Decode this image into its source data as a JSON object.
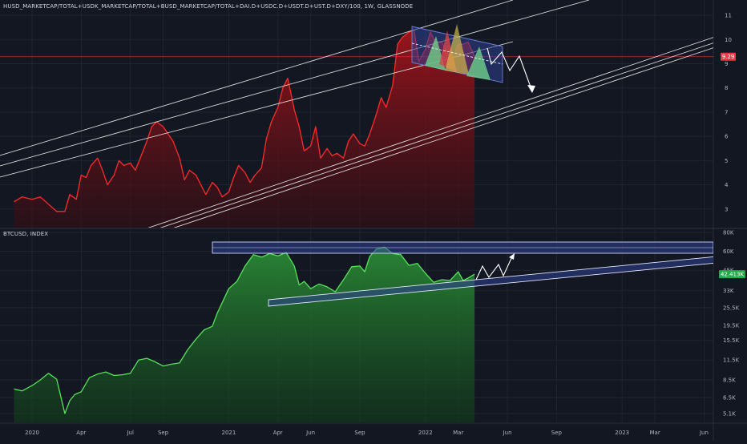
{
  "colors": {
    "background": "#131722",
    "grid": "#1f2430",
    "top_line": "#ff2a2a",
    "top_fill": "#8b0f16",
    "bottom_line": "#56e35a",
    "bottom_fill": "#1f6b28",
    "channel": "#d9d9d9",
    "price_line": "#ff2a2a",
    "badge_red": "#f23645",
    "badge_green": "#22ab4a",
    "pattern_blue": "#2f3f93",
    "pattern_green": "#6fd08a",
    "pattern_red": "#d84545",
    "pattern_yellow": "#d9c34a",
    "text": "#b2b5be"
  },
  "top_pane": {
    "title": "HUSD_MARKETCAP/TOTAL+USDK_MARKETCAP/TOTAL+BUSD_MARKETCAP/TOTAL+DAI.D+USDC.D+USDT.D+UST.D+DXY/100, 1W, GLASSNODE",
    "current_value_label": "9.29"
  },
  "bottom_pane": {
    "title": "BTCUSD, INDEX",
    "current_value_label": "42.413K"
  },
  "x_axis": {
    "labels": [
      {
        "text": "2020",
        "t": 0
      },
      {
        "text": "Apr",
        "t": 3
      },
      {
        "text": "Jul",
        "t": 6
      },
      {
        "text": "Sep",
        "t": 8
      },
      {
        "text": "2021",
        "t": 12
      },
      {
        "text": "Apr",
        "t": 15
      },
      {
        "text": "Jun",
        "t": 17
      },
      {
        "text": "Sep",
        "t": 20
      },
      {
        "text": "2022",
        "t": 24
      },
      {
        "text": "Mar",
        "t": 26
      },
      {
        "text": "Jun",
        "t": 29
      },
      {
        "text": "Sep",
        "t": 32
      },
      {
        "text": "2023",
        "t": 36
      },
      {
        "text": "Mar",
        "t": 38
      },
      {
        "text": "Jun",
        "t": 41
      }
    ]
  },
  "chart_data": [
    {
      "type": "area",
      "pane": "top",
      "title": "HUSD_MARKETCAP/TOTAL+USDK_MARKETCAP/TOTAL+BUSD_MARKETCAP/TOTAL+DAI.D+USDC.D+USDT.D+UST.D+DXY/100, 1W, GLASSNODE",
      "xlabel": "",
      "ylabel": "",
      "x_unit": "months since Jan 2020",
      "ylim": [
        2.3,
        11.3
      ],
      "y_ticks": [
        3,
        4,
        5,
        6,
        7,
        8,
        9,
        10,
        11
      ],
      "current_value": 9.29,
      "series": [
        {
          "x": [
            -1.1,
            -0.6,
            0,
            0.5,
            1,
            1.5,
            2,
            2.3,
            2.7,
            3,
            3.3,
            3.6,
            4,
            4.3,
            4.6,
            5,
            5.3,
            5.6,
            6,
            6.3,
            6.6,
            7,
            7.3,
            7.6,
            8,
            8.3,
            8.6,
            9,
            9.3,
            9.6,
            10,
            10.3,
            10.6,
            11,
            11.3,
            11.6,
            12,
            12.3,
            12.6,
            13,
            13.3,
            13.6,
            14,
            14.3,
            14.6,
            15,
            15.3,
            15.6,
            16,
            16.3,
            16.6,
            17,
            17.3,
            17.6,
            18,
            18.3,
            18.6,
            19,
            19.3,
            19.6,
            20,
            20.3,
            20.6,
            21,
            21.3,
            21.6,
            22,
            22.3,
            22.6,
            23,
            23.3,
            23.6,
            24,
            24.3,
            24.6,
            25,
            25.3,
            25.6,
            26,
            26.3,
            26.6,
            27
          ],
          "values": [
            3.3,
            3.5,
            3.4,
            3.5,
            3.2,
            2.9,
            2.9,
            3.6,
            3.4,
            4.4,
            4.3,
            4.8,
            5.1,
            4.6,
            4.0,
            4.4,
            5.0,
            4.8,
            4.9,
            4.6,
            5.1,
            5.8,
            6.4,
            6.6,
            6.4,
            6.1,
            5.8,
            5.1,
            4.2,
            4.6,
            4.4,
            4.0,
            3.6,
            4.1,
            3.9,
            3.5,
            3.7,
            4.3,
            4.8,
            4.5,
            4.1,
            4.4,
            4.7,
            5.9,
            6.6,
            7.2,
            8.0,
            8.4,
            7.1,
            6.4,
            5.4,
            5.6,
            6.4,
            5.1,
            5.5,
            5.2,
            5.3,
            5.1,
            5.8,
            6.1,
            5.7,
            5.6,
            6.1,
            6.9,
            7.6,
            7.2,
            8.1,
            9.8,
            10.1,
            10.3,
            10.4,
            9.1,
            9.6,
            10.3,
            9.9,
            9.9,
            9.5,
            9.1,
            9.8,
            9.8,
            9.9,
            9.29
          ]
        }
      ]
    },
    {
      "type": "area",
      "pane": "bottom",
      "title": "BTCUSD, INDEX",
      "xlabel": "",
      "ylabel": "",
      "x_unit": "months since Jan 2020",
      "y_scale": "log",
      "ylim": [
        4000,
        90000
      ],
      "y_ticks": [
        {
          "label": "80K",
          "value": 80000
        },
        {
          "label": "60K",
          "value": 60000
        },
        {
          "label": "45K",
          "value": 45000
        },
        {
          "label": "33K",
          "value": 33000
        },
        {
          "label": "25.5K",
          "value": 25500
        },
        {
          "label": "19.5K",
          "value": 19500
        },
        {
          "label": "15.5K",
          "value": 15500
        },
        {
          "label": "11.5K",
          "value": 11500
        },
        {
          "label": "8.5K",
          "value": 8500
        },
        {
          "label": "6.5K",
          "value": 6500
        },
        {
          "label": "5.1K",
          "value": 5100
        }
      ],
      "current_value": 42413,
      "series": [
        {
          "x": [
            -1.1,
            -0.6,
            0,
            0.5,
            1,
            1.5,
            2,
            2.3,
            2.6,
            3,
            3.5,
            4,
            4.5,
            5,
            5.5,
            6,
            6.5,
            7,
            7.5,
            8,
            8.5,
            9,
            9.5,
            10,
            10.5,
            11,
            11.3,
            11.6,
            12,
            12.5,
            13,
            13.5,
            14,
            14.5,
            15,
            15.5,
            16,
            16.3,
            16.6,
            17,
            17.5,
            18,
            18.5,
            19,
            19.5,
            20,
            20.3,
            20.6,
            21,
            21.5,
            22,
            22.5,
            23,
            23.5,
            24,
            24.5,
            25,
            25.5,
            26,
            26.3,
            26.6,
            27
          ],
          "values": [
            7400,
            7200,
            7800,
            8500,
            9400,
            8600,
            5100,
            6200,
            6800,
            7100,
            8800,
            9300,
            9600,
            9100,
            9200,
            9400,
            11500,
            11800,
            11200,
            10500,
            10800,
            11000,
            13500,
            15800,
            18200,
            19200,
            23500,
            27500,
            34000,
            38000,
            48000,
            57000,
            55000,
            58000,
            56000,
            59000,
            48000,
            36000,
            38000,
            34000,
            36500,
            35000,
            32500,
            39000,
            47500,
            48000,
            44000,
            55500,
            62000,
            64000,
            58000,
            57000,
            48500,
            50000,
            43000,
            37500,
            39000,
            38500,
            44000,
            38500,
            40000,
            42413
          ]
        }
      ]
    }
  ]
}
